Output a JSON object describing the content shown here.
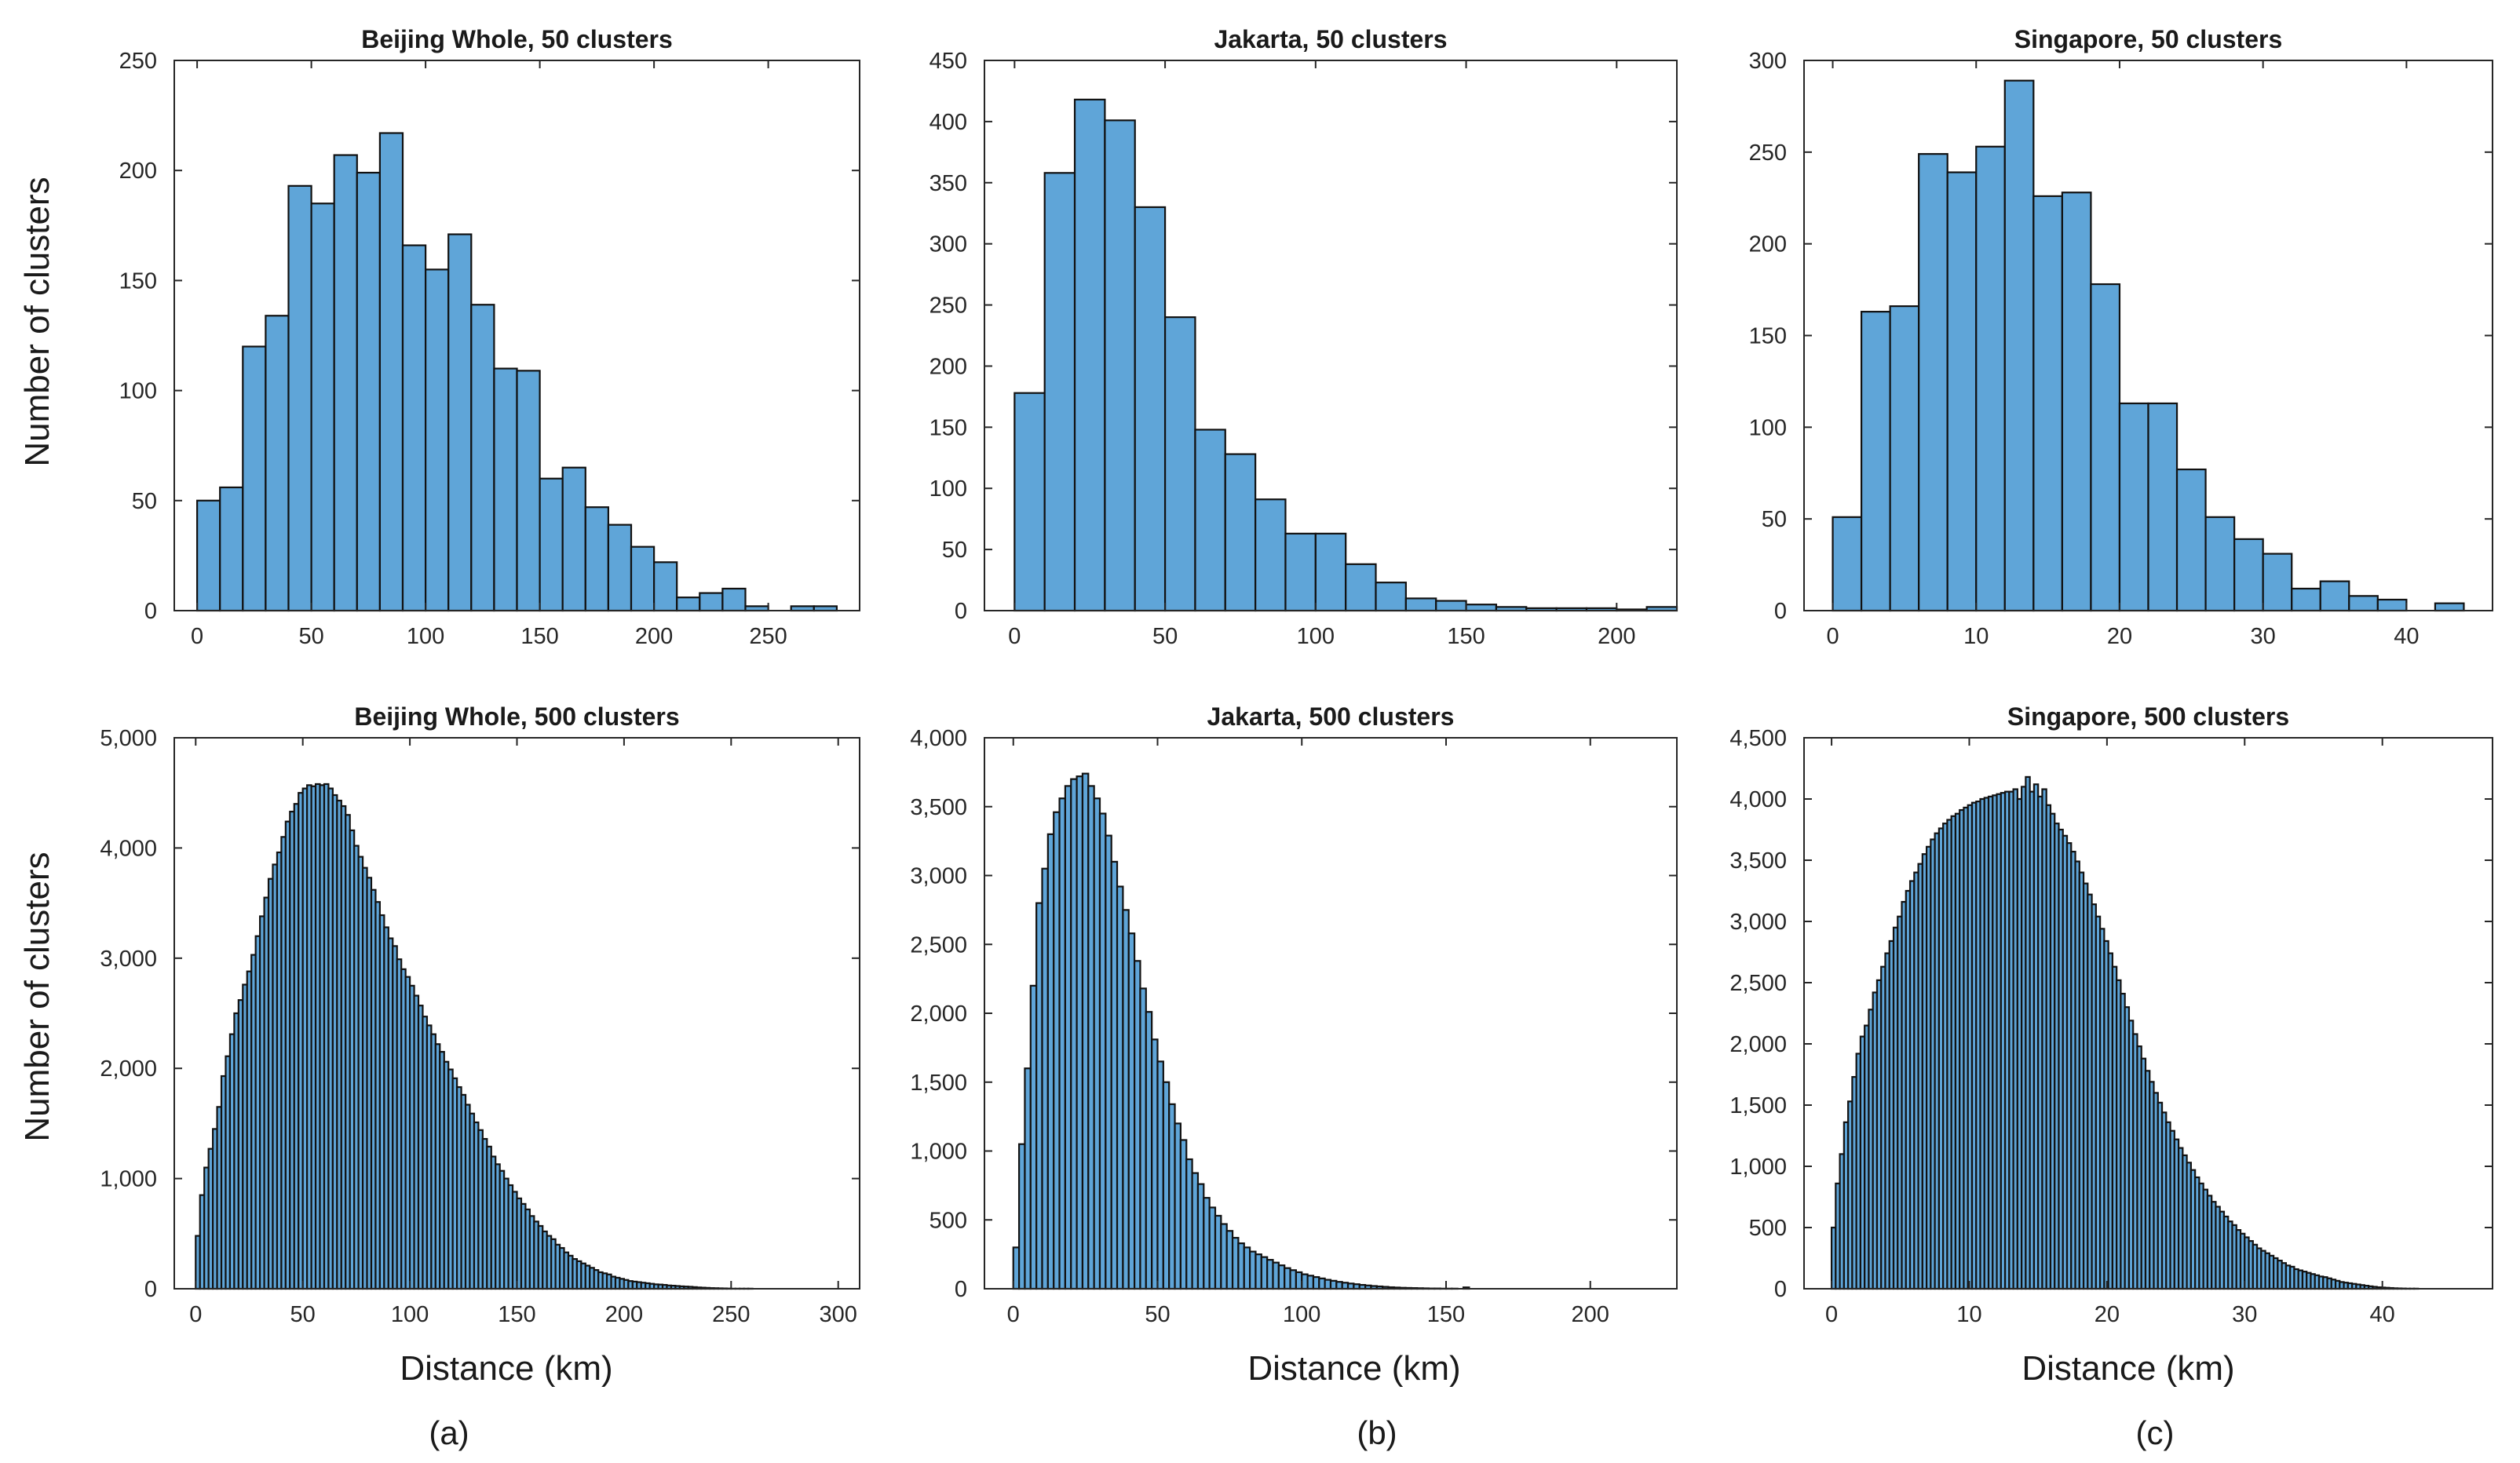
{
  "figure": {
    "ylabel": "Number of clusters",
    "xlabel": "Distance (km)",
    "subfigure_labels": [
      "(a)",
      "(b)",
      "(c)"
    ]
  },
  "colors": {
    "bar_fill": "#5fa5d8",
    "bar_edge": "#111111",
    "axis": "#262626"
  },
  "chart_data": [
    {
      "type": "bar",
      "title": "Beijing Whole, 50 clusters",
      "xlabel": "",
      "ylabel": "Number of clusters",
      "bin_width": 10,
      "bin_start": 0,
      "values": [
        50,
        56,
        120,
        134,
        193,
        185,
        207,
        199,
        217,
        166,
        155,
        171,
        139,
        110,
        109,
        60,
        65,
        47,
        39,
        29,
        22,
        6,
        8,
        10,
        2,
        0,
        2,
        2
      ],
      "xlim": [
        -10,
        290
      ],
      "ylim": [
        0,
        250
      ],
      "xticks": [
        0,
        50,
        100,
        150,
        200,
        250
      ],
      "yticks": [
        0,
        50,
        100,
        150,
        200,
        250
      ],
      "ytick_labels": [
        "0",
        "50",
        "100",
        "150",
        "200",
        "250"
      ]
    },
    {
      "type": "bar",
      "title": "Jakarta, 50 clusters",
      "xlabel": "",
      "ylabel": "",
      "bin_width": 10,
      "bin_start": 0,
      "values": [
        178,
        358,
        418,
        401,
        330,
        240,
        148,
        128,
        91,
        63,
        63,
        38,
        23,
        10,
        8,
        5,
        3,
        2,
        2,
        2,
        1,
        3
      ],
      "xlim": [
        -10,
        220
      ],
      "ylim": [
        0,
        450
      ],
      "xticks": [
        0,
        50,
        100,
        150,
        200
      ],
      "yticks": [
        0,
        50,
        100,
        150,
        200,
        250,
        300,
        350,
        400,
        450
      ],
      "ytick_labels": [
        "0",
        "50",
        "100",
        "150",
        "200",
        "250",
        "300",
        "350",
        "400",
        "450"
      ]
    },
    {
      "type": "bar",
      "title": "Singapore, 50 clusters",
      "xlabel": "",
      "ylabel": "",
      "bin_width": 2,
      "bin_start": 0,
      "values": [
        51,
        163,
        166,
        249,
        239,
        253,
        289,
        226,
        228,
        178,
        113,
        113,
        77,
        51,
        39,
        31,
        12,
        16,
        8,
        6,
        0,
        4
      ],
      "xlim": [
        -2,
        46
      ],
      "ylim": [
        0,
        300
      ],
      "xticks": [
        0,
        10,
        20,
        30,
        40
      ],
      "yticks": [
        0,
        50,
        100,
        150,
        200,
        250,
        300
      ],
      "ytick_labels": [
        "0",
        "50",
        "100",
        "150",
        "200",
        "250",
        "300"
      ]
    },
    {
      "type": "bar",
      "title": "Beijing Whole, 500 clusters",
      "xlabel": "Distance (km)",
      "ylabel": "Number of clusters",
      "bin_width": 2,
      "bin_start": 0,
      "values": [
        480,
        850,
        1100,
        1270,
        1450,
        1650,
        1930,
        2110,
        2310,
        2500,
        2620,
        2760,
        2880,
        3030,
        3200,
        3380,
        3550,
        3720,
        3850,
        3960,
        4100,
        4240,
        4330,
        4400,
        4500,
        4540,
        4570,
        4560,
        4580,
        4570,
        4580,
        4540,
        4480,
        4430,
        4380,
        4300,
        4160,
        4020,
        3920,
        3820,
        3730,
        3620,
        3510,
        3390,
        3280,
        3180,
        3110,
        2990,
        2900,
        2830,
        2750,
        2660,
        2570,
        2470,
        2390,
        2310,
        2220,
        2150,
        2060,
        1990,
        1910,
        1830,
        1760,
        1670,
        1590,
        1510,
        1440,
        1360,
        1290,
        1200,
        1130,
        1070,
        1000,
        940,
        880,
        820,
        770,
        720,
        660,
        610,
        570,
        520,
        480,
        450,
        400,
        370,
        330,
        300,
        270,
        250,
        230,
        210,
        190,
        170,
        150,
        140,
        130,
        110,
        100,
        90,
        80,
        70,
        65,
        60,
        55,
        50,
        45,
        40,
        38,
        35,
        30,
        28,
        25,
        22,
        20,
        18,
        15,
        12,
        10,
        8,
        6,
        5,
        4,
        3,
        2,
        1,
        1,
        1,
        1,
        1,
        0,
        0,
        0,
        0,
        0,
        0,
        0,
        0,
        0,
        0,
        0,
        0,
        0,
        0,
        0,
        0,
        0,
        0,
        0,
        0
      ],
      "xlim": [
        -10,
        310
      ],
      "ylim": [
        0,
        5000
      ],
      "xticks": [
        0,
        50,
        100,
        150,
        200,
        250,
        300
      ],
      "yticks": [
        0,
        1000,
        2000,
        3000,
        4000,
        5000
      ],
      "ytick_labels": [
        "0",
        "1,000",
        "2,000",
        "3,000",
        "4,000",
        "5,000"
      ]
    },
    {
      "type": "bar",
      "title": "Jakarta, 500 clusters",
      "xlabel": "Distance (km)",
      "ylabel": "",
      "bin_width": 2,
      "bin_start": 0,
      "values": [
        300,
        1050,
        1600,
        2200,
        2800,
        3050,
        3300,
        3460,
        3560,
        3650,
        3700,
        3720,
        3740,
        3650,
        3560,
        3450,
        3290,
        3100,
        2920,
        2750,
        2580,
        2380,
        2180,
        2010,
        1810,
        1650,
        1500,
        1340,
        1200,
        1080,
        940,
        840,
        760,
        660,
        590,
        530,
        470,
        420,
        370,
        330,
        300,
        270,
        250,
        230,
        210,
        190,
        170,
        150,
        135,
        120,
        105,
        95,
        85,
        75,
        65,
        58,
        50,
        44,
        38,
        33,
        28,
        24,
        20,
        17,
        14,
        11,
        9,
        7,
        6,
        5,
        4,
        3,
        2,
        2,
        1,
        1,
        1,
        0,
        10,
        0,
        0,
        0,
        0,
        0,
        0,
        0,
        0,
        0,
        0,
        0,
        0,
        0,
        0,
        0,
        0,
        0,
        0,
        0,
        0,
        0,
        0,
        0,
        0,
        0,
        0,
        0,
        0
      ],
      "xlim": [
        -10,
        230
      ],
      "ylim": [
        0,
        4000
      ],
      "xticks": [
        0,
        50,
        100,
        150,
        200
      ],
      "yticks": [
        0,
        500,
        1000,
        1500,
        2000,
        2500,
        3000,
        3500,
        4000
      ],
      "ytick_labels": [
        "0",
        "500",
        "1,000",
        "1,500",
        "2,000",
        "2,500",
        "3,000",
        "3,500",
        "4,000"
      ]
    },
    {
      "type": "bar",
      "title": "Singapore, 500 clusters",
      "xlabel": "Distance (km)",
      "ylabel": "",
      "bin_width": 0.3,
      "bin_start": 0,
      "values": [
        500,
        860,
        1100,
        1360,
        1530,
        1730,
        1920,
        2060,
        2150,
        2280,
        2420,
        2520,
        2630,
        2740,
        2840,
        2950,
        3040,
        3160,
        3250,
        3330,
        3400,
        3470,
        3550,
        3610,
        3670,
        3720,
        3760,
        3800,
        3830,
        3860,
        3880,
        3910,
        3930,
        3950,
        3970,
        3980,
        4000,
        4010,
        4020,
        4030,
        4040,
        4050,
        4060,
        4060,
        4080,
        4000,
        4100,
        4180,
        4060,
        4120,
        4020,
        4080,
        3950,
        3880,
        3800,
        3750,
        3700,
        3640,
        3570,
        3490,
        3400,
        3310,
        3220,
        3140,
        3040,
        2940,
        2840,
        2740,
        2630,
        2520,
        2410,
        2300,
        2190,
        2080,
        1980,
        1880,
        1780,
        1690,
        1600,
        1520,
        1440,
        1360,
        1290,
        1220,
        1150,
        1090,
        1030,
        970,
        910,
        860,
        810,
        760,
        710,
        670,
        630,
        590,
        550,
        520,
        480,
        450,
        420,
        390,
        360,
        330,
        310,
        290,
        270,
        250,
        230,
        210,
        190,
        180,
        160,
        150,
        140,
        130,
        120,
        110,
        100,
        95,
        85,
        75,
        65,
        55,
        50,
        45,
        40,
        35,
        30,
        25,
        20,
        16,
        12,
        10,
        8,
        6,
        4,
        3,
        2,
        1,
        1,
        1,
        0,
        0,
        0,
        0,
        0,
        0,
        0,
        0,
        0,
        0,
        0,
        0,
        0,
        0,
        0,
        0,
        0
      ],
      "xlim": [
        -2,
        48
      ],
      "ylim": [
        0,
        4500
      ],
      "xticks": [
        0,
        10,
        20,
        30,
        40
      ],
      "yticks": [
        0,
        500,
        1000,
        1500,
        2000,
        2500,
        3000,
        3500,
        4000,
        4500
      ],
      "ytick_labels": [
        "0",
        "500",
        "1,000",
        "1,500",
        "2,000",
        "2,500",
        "3,000",
        "3,500",
        "4,000",
        "4,500"
      ]
    }
  ]
}
